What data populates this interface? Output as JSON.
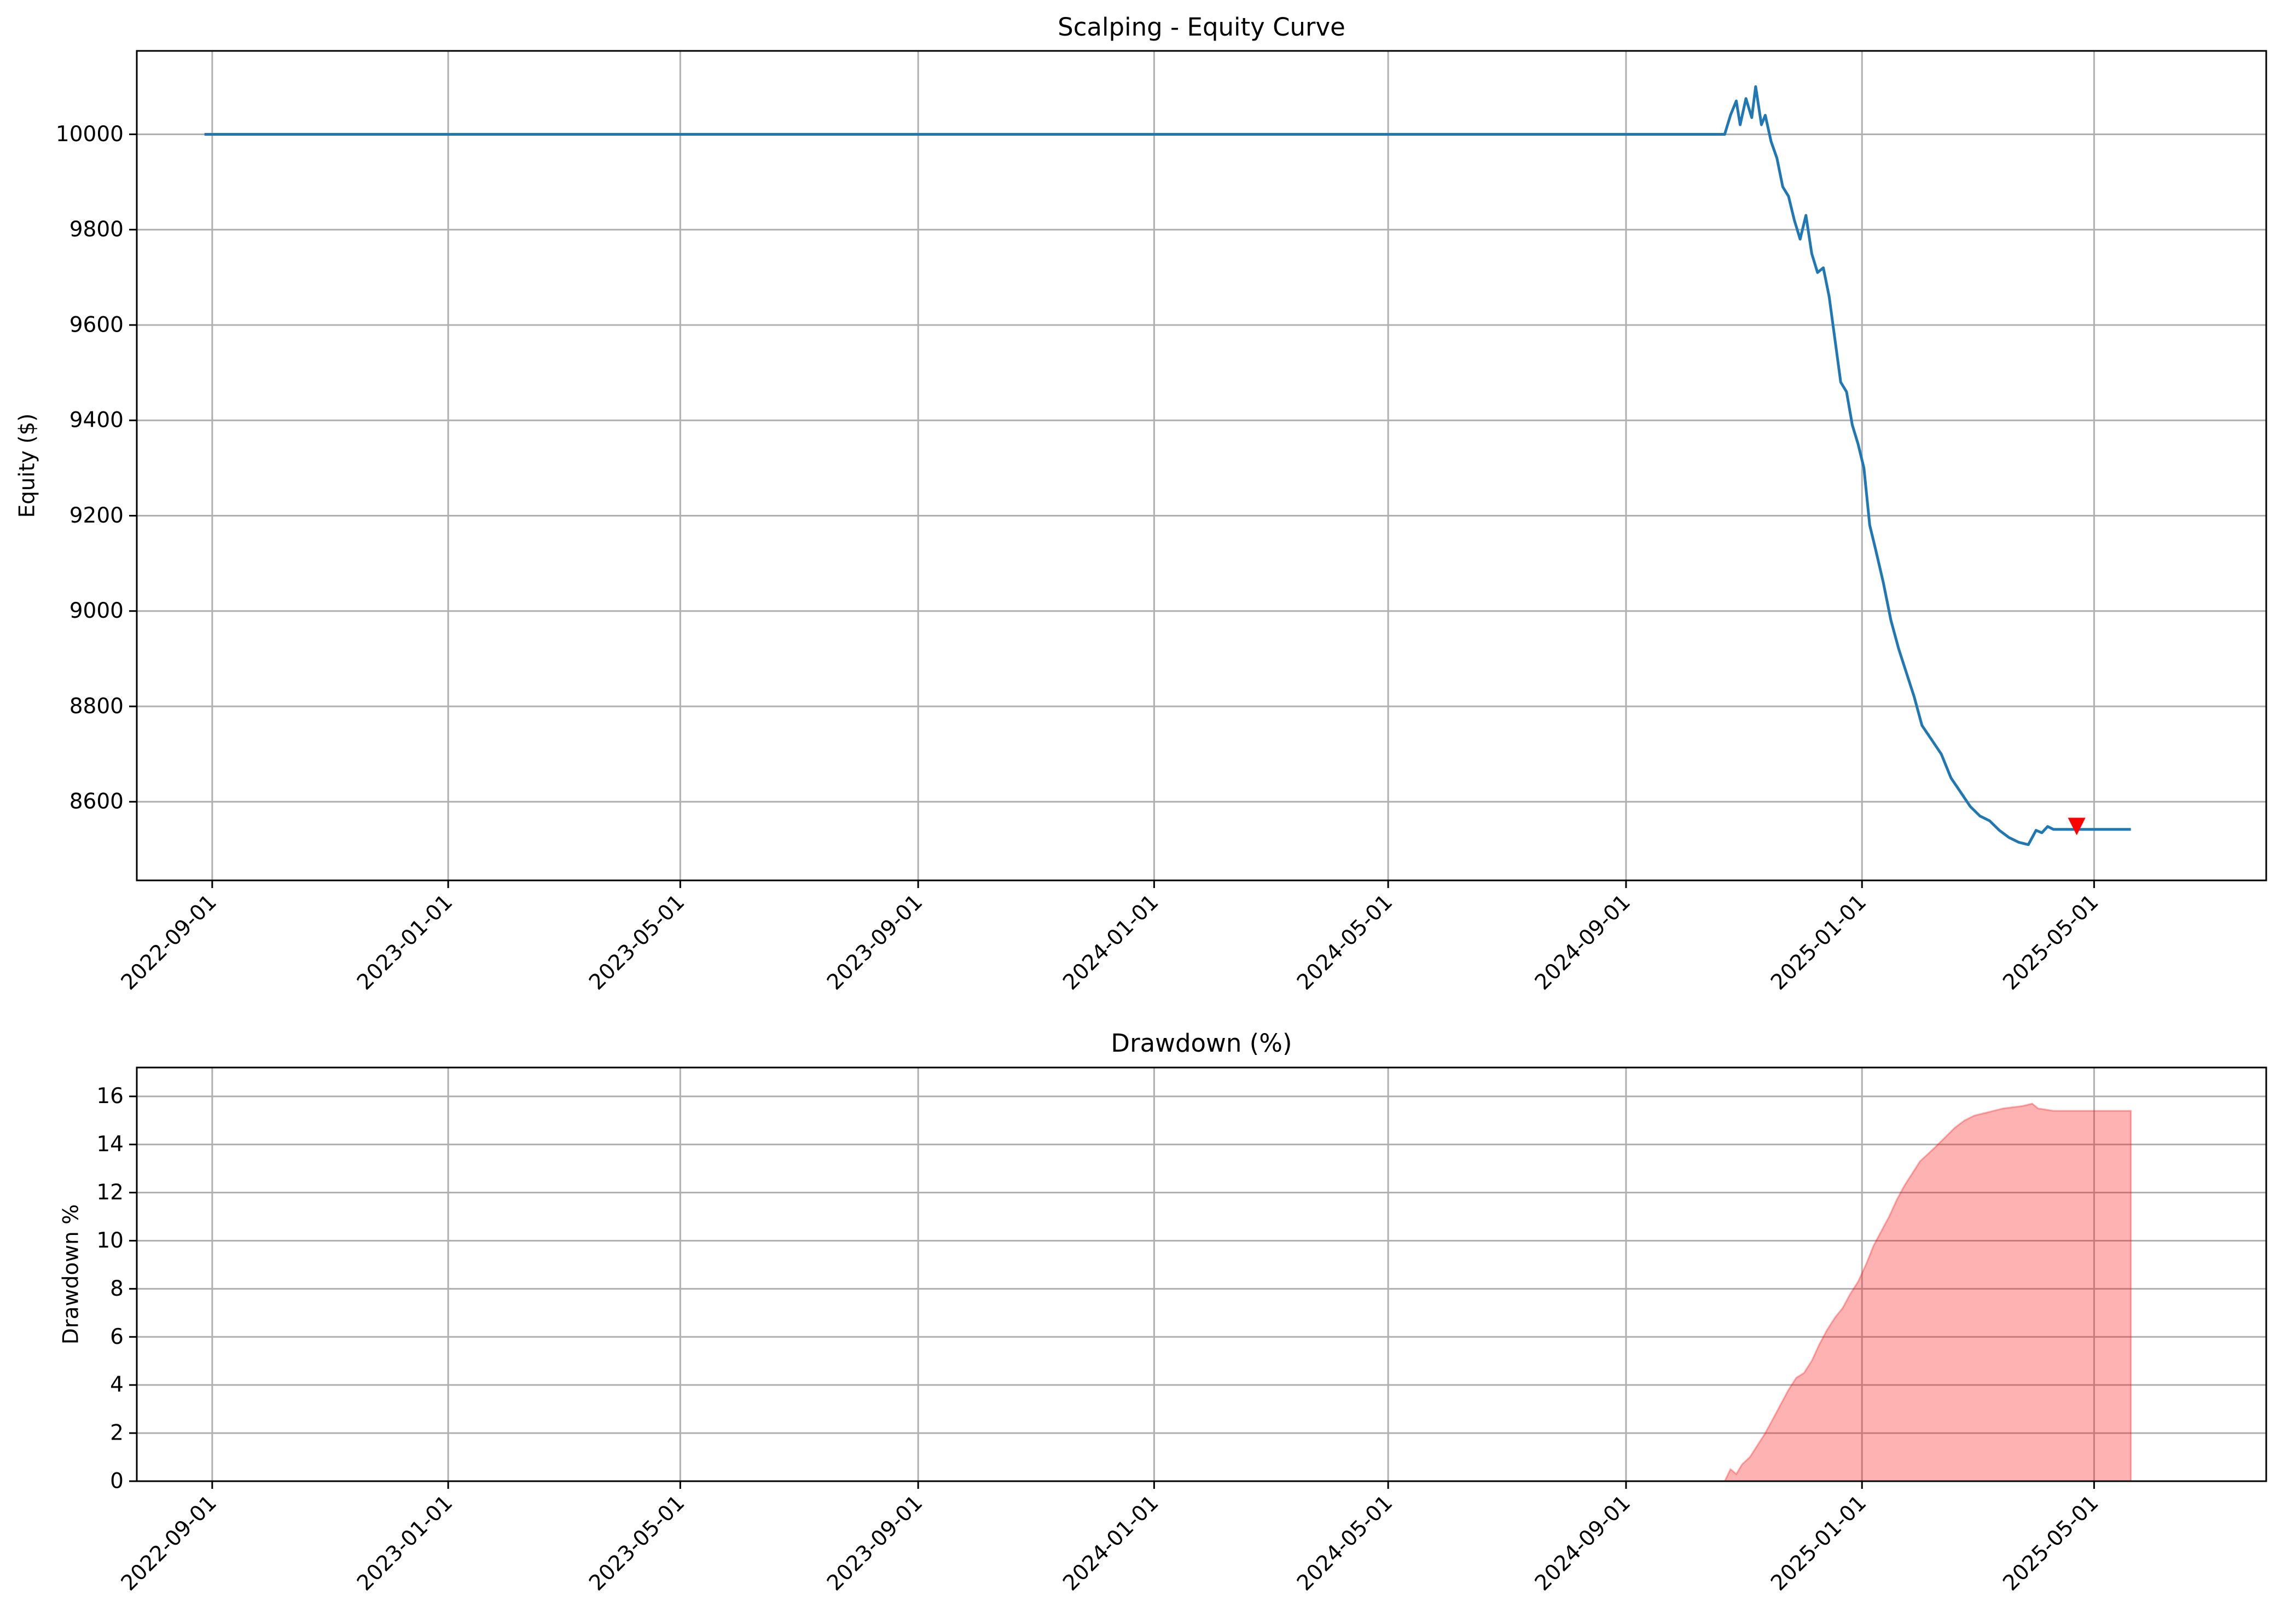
{
  "chart_data": [
    {
      "type": "line",
      "title": "Scalping - Equity Curve",
      "xlabel": "",
      "ylabel": "Equity ($)",
      "x_ticks": [
        "2022-09-01",
        "2023-01-01",
        "2023-05-01",
        "2023-09-01",
        "2024-01-01",
        "2024-05-01",
        "2024-09-01",
        "2025-01-01",
        "2025-05-01"
      ],
      "y_ticks": [
        8600,
        8800,
        9000,
        9200,
        9400,
        9600,
        9800,
        10000
      ],
      "xlim": [
        "2022-07-24",
        "2025-07-29"
      ],
      "ylim": [
        8435,
        10175
      ],
      "grid": true,
      "line_color": "#1f77b4",
      "marker_color": "#ff0000",
      "series": [
        {
          "x": [
            "2022-08-28",
            "2024-10-22",
            "2024-10-25",
            "2024-10-28",
            "2024-10-30",
            "2024-11-02",
            "2024-11-05",
            "2024-11-07",
            "2024-11-10",
            "2024-11-12",
            "2024-11-15",
            "2024-11-18",
            "2024-11-21",
            "2024-11-24",
            "2024-11-27",
            "2024-11-30",
            "2024-12-03",
            "2024-12-06",
            "2024-12-09",
            "2024-12-12",
            "2024-12-15",
            "2024-12-18",
            "2024-12-21",
            "2024-12-24",
            "2024-12-27",
            "2024-12-30",
            "2025-01-02",
            "2025-01-05",
            "2025-01-08",
            "2025-01-12",
            "2025-01-16",
            "2025-01-20",
            "2025-01-24",
            "2025-01-28",
            "2025-02-01",
            "2025-02-06",
            "2025-02-11",
            "2025-02-16",
            "2025-02-21",
            "2025-02-26",
            "2025-03-03",
            "2025-03-08",
            "2025-03-13",
            "2025-03-18",
            "2025-03-23",
            "2025-03-28",
            "2025-04-01",
            "2025-04-04",
            "2025-04-07",
            "2025-04-10",
            "2025-05-20"
          ],
          "y": [
            10000,
            10000,
            10040,
            10070,
            10020,
            10075,
            10035,
            10100,
            10020,
            10040,
            9985,
            9950,
            9890,
            9870,
            9820,
            9780,
            9830,
            9750,
            9710,
            9720,
            9660,
            9570,
            9480,
            9460,
            9390,
            9350,
            9300,
            9180,
            9130,
            9060,
            8980,
            8920,
            8870,
            8820,
            8760,
            8730,
            8700,
            8650,
            8620,
            8590,
            8570,
            8560,
            8540,
            8525,
            8515,
            8510,
            8540,
            8535,
            8548,
            8542,
            8542
          ]
        }
      ],
      "annotations": [
        {
          "kind": "marker",
          "shape": "triangle-down",
          "x": "2025-04-22",
          "y": 8548
        }
      ]
    },
    {
      "type": "area",
      "title": "Drawdown (%)",
      "xlabel": "",
      "ylabel": "Drawdown %",
      "x_ticks": [
        "2022-09-01",
        "2023-01-01",
        "2023-05-01",
        "2023-09-01",
        "2024-01-01",
        "2024-05-01",
        "2024-09-01",
        "2025-01-01",
        "2025-05-01"
      ],
      "y_ticks": [
        0,
        2,
        4,
        6,
        8,
        10,
        12,
        14,
        16
      ],
      "xlim": [
        "2022-07-24",
        "2025-07-29"
      ],
      "ylim": [
        0,
        17.2
      ],
      "grid": true,
      "fill_color": "#ff0000",
      "fill_opacity": 0.3,
      "series": [
        {
          "x": [
            "2022-08-28",
            "2024-10-22",
            "2024-10-25",
            "2024-10-28",
            "2024-10-31",
            "2024-11-04",
            "2024-11-08",
            "2024-11-12",
            "2024-11-16",
            "2024-11-20",
            "2024-11-24",
            "2024-11-28",
            "2024-12-02",
            "2024-12-06",
            "2024-12-10",
            "2024-12-14",
            "2024-12-18",
            "2024-12-22",
            "2024-12-26",
            "2024-12-30",
            "2025-01-03",
            "2025-01-07",
            "2025-01-11",
            "2025-01-15",
            "2025-01-19",
            "2025-01-23",
            "2025-01-27",
            "2025-01-31",
            "2025-02-04",
            "2025-02-08",
            "2025-02-13",
            "2025-02-18",
            "2025-02-23",
            "2025-02-28",
            "2025-03-05",
            "2025-03-10",
            "2025-03-15",
            "2025-03-20",
            "2025-03-25",
            "2025-03-30",
            "2025-04-02",
            "2025-04-06",
            "2025-04-10",
            "2025-05-20"
          ],
          "y": [
            0,
            0,
            0.5,
            0.3,
            0.7,
            1.0,
            1.5,
            2.0,
            2.6,
            3.2,
            3.8,
            4.3,
            4.5,
            5.0,
            5.7,
            6.3,
            6.8,
            7.2,
            7.8,
            8.3,
            9.0,
            9.8,
            10.4,
            11.0,
            11.7,
            12.3,
            12.8,
            13.3,
            13.6,
            13.9,
            14.3,
            14.7,
            15.0,
            15.2,
            15.3,
            15.4,
            15.5,
            15.55,
            15.6,
            15.7,
            15.5,
            15.45,
            15.4,
            15.4
          ]
        }
      ]
    }
  ]
}
